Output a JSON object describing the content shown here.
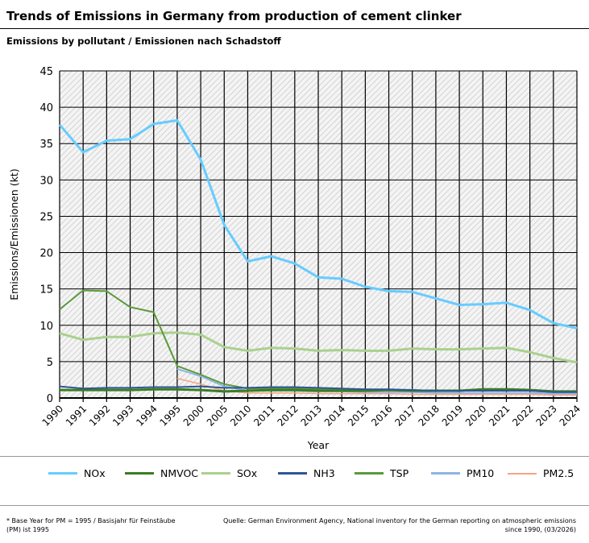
{
  "title": "Trends of Emissions in Germany from production of cement clinker",
  "subtitle": "Emissions by pollutant / Emissionen nach Schadstoff",
  "footnote_left": "* Base Year for PM = 1995 / Basisjahr für Feinstäube (PM) ist 1995",
  "footnote_right": "Quelle: German Environment Agency, National inventory for the German reporting on atmospheric emissions since 1990, (03/2026)",
  "chart_data": {
    "type": "line",
    "xlabel": "Year",
    "ylabel": "Emissions/Emissionen (kt)",
    "ylim": [
      0,
      45
    ],
    "yticks": [
      0,
      5,
      10,
      15,
      20,
      25,
      30,
      35,
      40,
      45
    ],
    "grid": true,
    "legend": "bottom",
    "categories": [
      "1990",
      "1991",
      "1992",
      "1993",
      "1994",
      "1995",
      "2000",
      "2005",
      "2010",
      "2011",
      "2012",
      "2013",
      "2014",
      "2015",
      "2016",
      "2017",
      "2018",
      "2019",
      "2020",
      "2021",
      "2022",
      "2023",
      "2024"
    ],
    "series": [
      {
        "name": "NOx",
        "color": "#66ccff",
        "width": 3,
        "values": [
          37.6,
          33.8,
          35.4,
          35.6,
          37.7,
          38.2,
          32.8,
          23.8,
          18.8,
          19.5,
          18.5,
          16.6,
          16.4,
          15.3,
          14.7,
          14.6,
          13.7,
          12.8,
          12.9,
          13.1,
          12.1,
          10.3,
          9.6
        ]
      },
      {
        "name": "NMVOC",
        "color": "#3a7d22",
        "width": 3,
        "values": [
          1.1,
          1.1,
          1.1,
          1.1,
          1.2,
          1.2,
          1.1,
          0.9,
          1.0,
          1.1,
          1.1,
          1.0,
          1.0,
          1.0,
          1.1,
          1.0,
          1.0,
          1.0,
          1.2,
          1.2,
          1.1,
          0.9,
          0.9
        ]
      },
      {
        "name": "SOx",
        "color": "#a9d18e",
        "width": 3,
        "values": [
          8.9,
          8.0,
          8.4,
          8.4,
          8.9,
          9.0,
          8.7,
          7.0,
          6.5,
          6.9,
          6.8,
          6.5,
          6.6,
          6.5,
          6.5,
          6.8,
          6.7,
          6.7,
          6.8,
          6.9,
          6.3,
          5.5,
          4.9
        ]
      },
      {
        "name": "NH3",
        "color": "#2f5597",
        "width": 2,
        "values": [
          1.6,
          1.3,
          1.4,
          1.4,
          1.5,
          1.5,
          1.6,
          1.4,
          1.4,
          1.5,
          1.5,
          1.4,
          1.3,
          1.2,
          1.2,
          1.1,
          1.0,
          1.0,
          1.0,
          1.0,
          1.0,
          0.8,
          0.8
        ]
      },
      {
        "name": "TSP",
        "color": "#5a9a3a",
        "width": 2,
        "values": [
          12.2,
          14.8,
          14.7,
          12.5,
          11.8,
          4.4,
          3.2,
          1.9,
          1.3,
          1.3,
          1.3,
          1.2,
          1.2,
          1.2,
          1.1,
          1.1,
          1.0,
          1.0,
          1.1,
          1.1,
          1.0,
          0.8,
          0.8
        ]
      },
      {
        "name": "PM10",
        "color": "#8fb4e3",
        "width": 2,
        "values": [
          null,
          null,
          null,
          null,
          null,
          4.0,
          3.0,
          1.6,
          1.0,
          1.0,
          1.0,
          0.9,
          0.9,
          0.8,
          0.8,
          0.8,
          0.7,
          0.7,
          0.7,
          0.7,
          0.7,
          0.6,
          0.6
        ]
      },
      {
        "name": "PM2.5",
        "color": "#f4a582",
        "width": 1.5,
        "values": [
          null,
          null,
          null,
          null,
          null,
          2.7,
          1.9,
          1.0,
          0.7,
          0.7,
          0.7,
          0.6,
          0.6,
          0.6,
          0.6,
          0.5,
          0.5,
          0.5,
          0.5,
          0.5,
          0.5,
          0.4,
          0.4
        ]
      }
    ]
  }
}
